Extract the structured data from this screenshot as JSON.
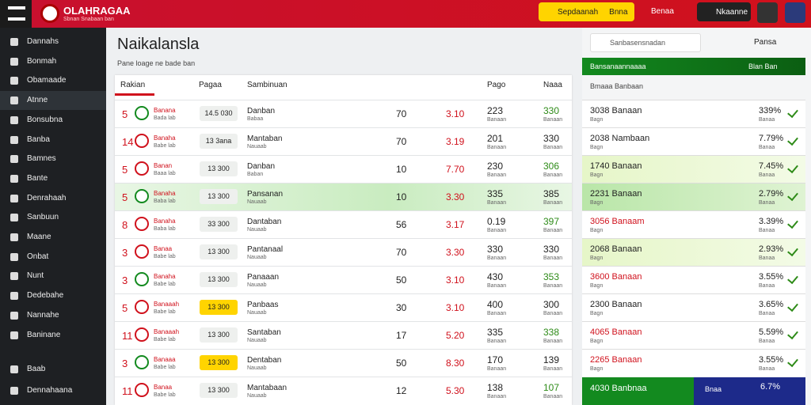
{
  "header": {
    "logo": "OLAHRAGAA",
    "tagline": "Sbnan Snabaan ban",
    "promo": "Sepdaanah",
    "promo_tag": "Bnna",
    "live": "Benaa",
    "login": "Nkaanne"
  },
  "sidebar": {
    "items": [
      "Dannahs",
      "Bonmah",
      "Obamaade",
      "Atnne",
      "Bonsubna",
      "Banba",
      "Bamnes",
      "Bante",
      "Denrahaah",
      "Sanbuun",
      "Maane",
      "Onbat",
      "Nunt",
      "Dedebahe",
      "Nannahe",
      "Baninane"
    ],
    "bottom": [
      "Baab",
      "Dennahaana"
    ]
  },
  "main": {
    "title": "Naikalansla",
    "subtitle": "Pane loage ne bade ban",
    "columns": [
      "Rakian",
      "Pagaa",
      "Sambinuan",
      "Pago",
      "Naaa"
    ],
    "rows": [
      [
        "5",
        "Banana",
        "Bada lab",
        "14.5 030",
        "Danban",
        "Babaa",
        "70",
        "3.10",
        "223",
        "Banaan",
        "330",
        "Banaan"
      ],
      [
        "14",
        "Banaha",
        "Babe lab",
        "13 3ana",
        "Mantaban",
        "Nauaab",
        "70",
        "3.19",
        "201",
        "Banaan",
        "330",
        "Banaan"
      ],
      [
        "5",
        "Banan",
        "Baaa lab",
        "13 300",
        "Danban",
        "Baban",
        "10",
        "7.70",
        "230",
        "Banaan",
        "306",
        "Banaan"
      ],
      [
        "5",
        "Banaha",
        "Baba lab",
        "13 300",
        "Pansanan",
        "Nauaab",
        "10",
        "3.30",
        "335",
        "Banaan",
        "385",
        "Banaan"
      ],
      [
        "8",
        "Banaha",
        "Baba lab",
        "33 300",
        "Dantaban",
        "Nauaab",
        "56",
        "3.17",
        "0.19",
        "Banaan",
        "397",
        "Banaan"
      ],
      [
        "3",
        "Banaa",
        "Babe lab",
        "13 300",
        "Pantanaal",
        "Nauaab",
        "70",
        "3.30",
        "330",
        "Banaan",
        "330",
        "Banaan"
      ],
      [
        "3",
        "Banaha",
        "Babe lab",
        "13 300",
        "Panaaan",
        "Nauaab",
        "50",
        "3.10",
        "430",
        "Banaan",
        "353",
        "Banaan"
      ],
      [
        "5",
        "Banaaah",
        "Babe lab",
        "13 300",
        "Panbaas",
        "Nauaab",
        "30",
        "3.10",
        "400",
        "Banaan",
        "300",
        "Banaan"
      ],
      [
        "11",
        "Banaaah",
        "Babe lab",
        "13 300",
        "Santaban",
        "Nauaab",
        "17",
        "5.20",
        "335",
        "Banaan",
        "338",
        "Banaan"
      ],
      [
        "3",
        "Banaaa",
        "Babe lab",
        "13 300",
        "Dentaban",
        "Nauaab",
        "50",
        "8.30",
        "170",
        "Banaan",
        "139",
        "Banaan"
      ],
      [
        "11",
        "Banaa",
        "Babe lab",
        "13 300",
        "Mantabaan",
        "Nauaab",
        "12",
        "5.30",
        "138",
        "Banaan",
        "107",
        "Banaan"
      ]
    ]
  },
  "panel": {
    "search": "Sanbasensnadan",
    "filter": "Pansa",
    "list_title": "Bansanaannaaaa",
    "list_tag": "Blan Ban",
    "sub_title": "Bmaaa Banbaan",
    "rows": [
      [
        "3038 Banaan",
        "Bagn",
        "339%",
        "Banaa"
      ],
      [
        "2038 Nambaan",
        "Bagn",
        "7.79%",
        "Banaa"
      ],
      [
        "1740 Banaan",
        "Bagn",
        "7.45%",
        "Banaa"
      ],
      [
        "2231 Banaan",
        "Bagn",
        "2.79%",
        "Banaa"
      ],
      [
        "3056 Banaam",
        "Bagn",
        "3.39%",
        "Banaa"
      ],
      [
        "2068 Banaan",
        "Bagn",
        "2.93%",
        "Banaa"
      ],
      [
        "3600 Banaan",
        "Bagn",
        "3.55%",
        "Banaa"
      ],
      [
        "2300 Banaan",
        "Bagn",
        "3.65%",
        "Banaa"
      ],
      [
        "4065 Banaan",
        "Bagn",
        "5.59%",
        "Banaa"
      ],
      [
        "2265 Banaan",
        "Bagn",
        "3.55%",
        "Banaa"
      ]
    ],
    "footer": [
      "4030 Banbnaa",
      "Bnaa",
      "6.7%"
    ]
  }
}
